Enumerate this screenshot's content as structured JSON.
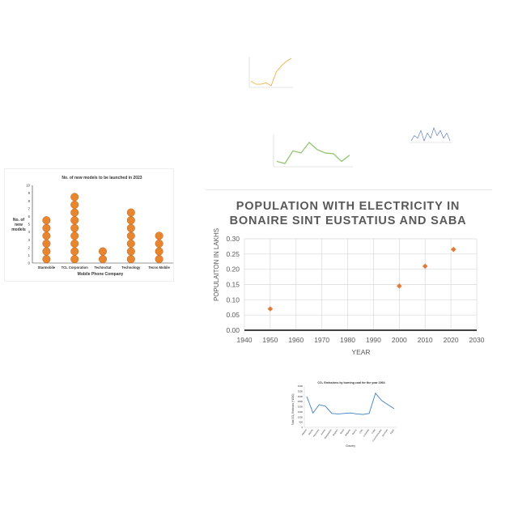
{
  "chart_data": [
    {
      "id": "population-electricity",
      "type": "scatter",
      "title_line1": "POPULATION WITH ELECTRICITY IN",
      "title_line2": "BONAIRE SINT EUSTATIUS AND SABA",
      "xlabel": "YEAR",
      "ylabel": "POPULAITON IN LAKHS",
      "xlim": [
        1940,
        2030
      ],
      "ylim": [
        0,
        0.3
      ],
      "xticks": [
        "1940",
        "1950",
        "1960",
        "1970",
        "1980",
        "1990",
        "2000",
        "2010",
        "2020",
        "2030"
      ],
      "yticks": [
        "0.00",
        "0.05",
        "0.10",
        "0.15",
        "0.20",
        "0.25",
        "0.30"
      ],
      "grid": true,
      "marker_color": "#e07b39",
      "x": [
        1950,
        2000,
        2010,
        2021
      ],
      "y": [
        0.07,
        0.145,
        0.21,
        0.265
      ]
    },
    {
      "id": "new-models",
      "type": "dot-plot",
      "title": "No. of new models to be launched in 2023",
      "xlabel": "Mobile Phone Company",
      "ylabel_lines": [
        "No. of",
        "new",
        "models"
      ],
      "ylim": [
        0,
        10
      ],
      "yticks": [
        "0",
        "1",
        "2",
        "3",
        "4",
        "5",
        "6",
        "7",
        "8",
        "9",
        "10"
      ],
      "categories": [
        "Starmobile",
        "TCL Corporation",
        "TechnoSat",
        "Technology",
        "Tecno Mobile"
      ],
      "values": [
        6,
        9,
        2,
        7,
        4
      ],
      "marker_color": "#e8852f"
    },
    {
      "id": "co2-emissions",
      "type": "line",
      "title": "CO₂ Emissions by burning coal for the year 1964",
      "xlabel": "Country",
      "ylabel": "Total CO₂ Emission (*1000)",
      "ylim": [
        0,
        4000
      ],
      "yticks": [
        "0",
        "500",
        "1000",
        "1500",
        "2000",
        "2500",
        "3000",
        "3500",
        "4000"
      ],
      "line_color": "#3f7fbf",
      "categories": [
        "Albania",
        "Algeria",
        "Argentina",
        "Austria",
        "Bangladesh",
        "Belgium",
        "Brazil",
        "Bulgaria",
        "Burma",
        "Chile",
        "Colombia",
        "Cuba",
        "Czechoslovakia",
        "Denmark",
        "Egypt"
      ],
      "values": [
        3000,
        1400,
        2200,
        2050,
        1350,
        1300,
        1350,
        1400,
        1300,
        1250,
        1350,
        3300,
        2600,
        2200,
        1800
      ]
    },
    {
      "id": "mini-line-green",
      "type": "line",
      "line_color": "#8cc36b",
      "values": [
        40,
        35,
        65,
        60,
        85,
        68,
        60,
        58,
        40,
        55
      ]
    },
    {
      "id": "mini-line-orange",
      "type": "line",
      "line_color": "#f0b24a",
      "values": [
        0.3,
        0.2,
        0.2,
        0.25,
        0.15,
        0.6,
        0.8,
        0.95,
        1.05
      ]
    },
    {
      "id": "mini-line-blue",
      "type": "line",
      "line_color": "#4a6fbf",
      "values": [
        2,
        4,
        3,
        6,
        2,
        5,
        3,
        7,
        4,
        6,
        3,
        5,
        2
      ]
    }
  ]
}
